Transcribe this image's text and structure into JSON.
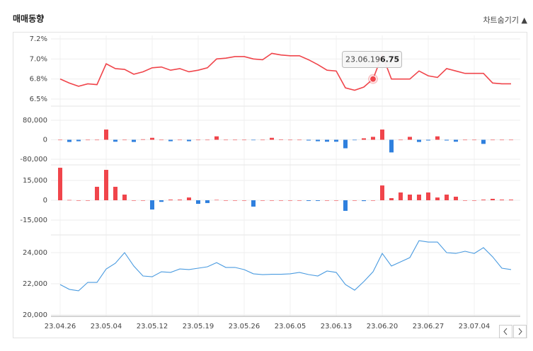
{
  "header": {
    "title": "매매동향",
    "toggle": "차트숨기기 ▲"
  },
  "chart_data": [
    {
      "type": "line",
      "color": "#f0454b",
      "values": [
        6.75,
        6.7,
        6.66,
        6.69,
        6.68,
        6.94,
        6.88,
        6.87,
        6.81,
        6.84,
        6.89,
        6.9,
        6.86,
        6.88,
        6.84,
        6.86,
        6.89,
        7.0,
        7.01,
        7.03,
        7.03,
        7.0,
        6.99,
        7.07,
        7.05,
        7.04,
        7.04,
        6.99,
        6.93,
        6.86,
        6.85,
        6.64,
        6.61,
        6.65,
        6.75,
        7.05,
        6.75,
        6.75,
        6.75,
        6.85,
        6.79,
        6.77,
        6.88,
        6.85,
        6.82,
        6.82,
        6.82,
        6.7,
        6.69,
        6.69
      ],
      "ylim": [
        6.5,
        7.25
      ],
      "yticks": [
        {
          "value": 7.25,
          "label": "7.2%"
        },
        {
          "value": 7.0,
          "label": "7.0%"
        },
        {
          "value": 6.75,
          "label": "6.8%"
        },
        {
          "value": 6.5,
          "label": "6.5%"
        }
      ],
      "tooltip": {
        "date": "23.06.19"
      }
    },
    {
      "type": "bar",
      "color": "#f0454b",
      "negative_color": "#2f80de",
      "values": [
        0,
        -9000,
        -6000,
        0,
        0,
        42000,
        -8000,
        0,
        -9000,
        2000,
        8000,
        0,
        -6000,
        0,
        -6000,
        0,
        0,
        14000,
        0,
        0,
        0,
        -2000,
        0,
        8000,
        1000,
        0,
        0,
        -3000,
        -6000,
        -8000,
        -8000,
        -35000,
        -2000,
        6000,
        12000,
        42000,
        -52000,
        0,
        12000,
        -9000,
        -3000,
        14000,
        -3000,
        -8000,
        0,
        0,
        -17000,
        0,
        0,
        0
      ],
      "ylim": [
        -80000,
        80000
      ],
      "yticks": [
        {
          "value": 80000,
          "label": "80,000"
        },
        0,
        {
          "value": -80000,
          "label": "-80,000"
        }
      ]
    },
    {
      "type": "bar",
      "color": "#f0454b",
      "negative_color": "#2f80de",
      "values": [
        24600,
        200,
        0,
        0,
        10200,
        23000,
        10200,
        4300,
        0,
        0,
        -7000,
        -1200,
        500,
        500,
        2100,
        -2700,
        -2100,
        300,
        0,
        0,
        0,
        -4800,
        0,
        0,
        0,
        0,
        0,
        -500,
        -500,
        0,
        0,
        -8000,
        0,
        -600,
        0,
        11200,
        1600,
        5900,
        4300,
        4300,
        5900,
        2100,
        4300,
        2700,
        0,
        0,
        500,
        1100,
        500,
        500
      ],
      "ylim": [
        -25000,
        25000
      ],
      "yticks": [
        {
          "value": 15000,
          "label": "15,000"
        },
        0,
        {
          "value": -15000,
          "label": "-15,000"
        }
      ]
    },
    {
      "type": "line",
      "color": "#4a9be0",
      "categories": [
        "23.04.26",
        null,
        null,
        null,
        null,
        "23.05.04",
        null,
        null,
        null,
        null,
        "23.05.12",
        null,
        null,
        null,
        null,
        "23.05.19",
        null,
        null,
        null,
        null,
        "23.05.26",
        null,
        null,
        null,
        null,
        "23.06.05",
        null,
        null,
        null,
        null,
        "23.06.13",
        null,
        null,
        null,
        null,
        "23.06.20",
        null,
        null,
        null,
        null,
        "23.06.27",
        null,
        null,
        null,
        null,
        "23.07.04",
        null,
        null,
        null,
        null
      ],
      "values": [
        21950,
        21640,
        21550,
        22090,
        22090,
        22950,
        23320,
        24000,
        23140,
        22500,
        22450,
        22770,
        22730,
        22950,
        22910,
        23000,
        23090,
        23360,
        23050,
        23050,
        22910,
        22640,
        22590,
        22610,
        22610,
        22640,
        22730,
        22590,
        22500,
        22820,
        22730,
        21950,
        21590,
        22140,
        22770,
        23950,
        23140,
        23410,
        23680,
        24770,
        24680,
        24680,
        24000,
        23950,
        24090,
        23950,
        24320,
        23730,
        23000,
        22910
      ],
      "ylim": [
        20000,
        25000
      ],
      "yticks": [
        {
          "value": 24000,
          "label": "24,000"
        },
        {
          "value": 22000,
          "label": "22,000"
        },
        {
          "value": 20000,
          "label": "20,000"
        }
      ]
    }
  ]
}
